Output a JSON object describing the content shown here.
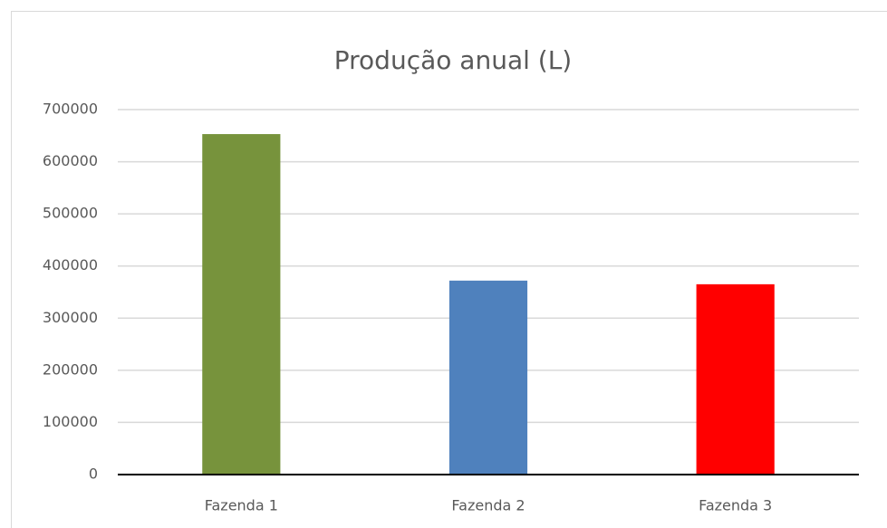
{
  "chart_data": {
    "type": "bar",
    "title": "Produção anual (L)",
    "categories": [
      "Fazenda 1",
      "Fazenda 2",
      "Fazenda 3"
    ],
    "values": [
      653000,
      372000,
      365000
    ],
    "colors": [
      "#77933c",
      "#4f81bd",
      "#ff0000"
    ],
    "ylim": [
      0,
      700000
    ],
    "yticks": [
      0,
      100000,
      200000,
      300000,
      400000,
      500000,
      600000,
      700000
    ],
    "grid": true
  }
}
